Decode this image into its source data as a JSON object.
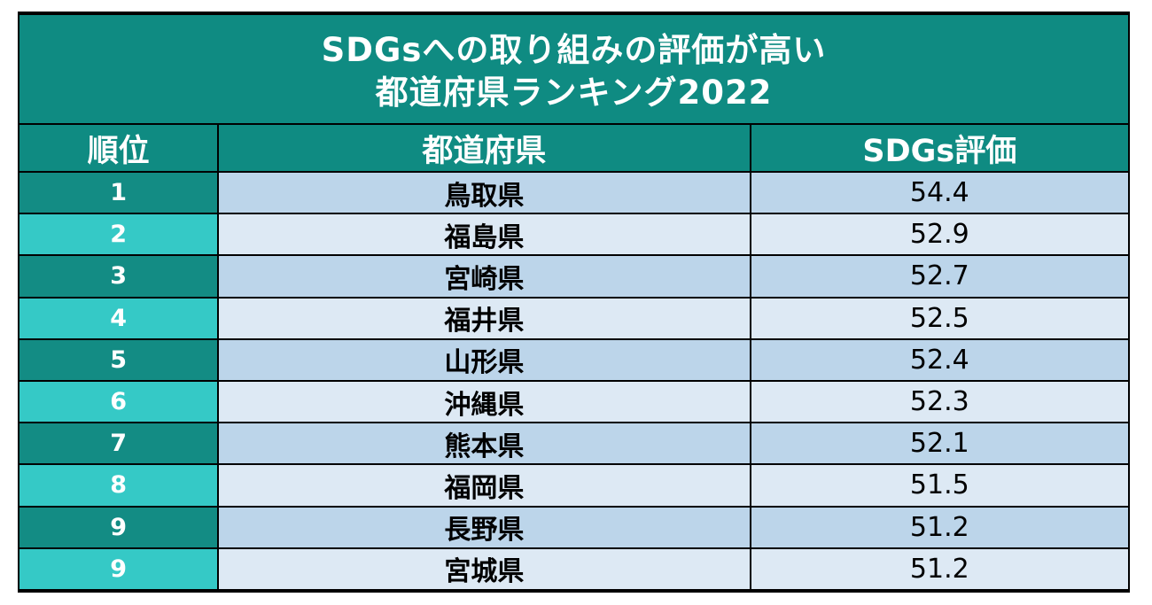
{
  "title": {
    "line1": "SDGsへの取り組みの評価が高い",
    "line2": "都道府県ランキング2022"
  },
  "headers": {
    "rank": "順位",
    "prefecture": "都道府県",
    "score": "SDGs評価"
  },
  "rows": [
    {
      "rank": "1",
      "prefecture": "鳥取県",
      "score": "54.4"
    },
    {
      "rank": "2",
      "prefecture": "福島県",
      "score": "52.9"
    },
    {
      "rank": "3",
      "prefecture": "宮崎県",
      "score": "52.7"
    },
    {
      "rank": "4",
      "prefecture": "福井県",
      "score": "52.5"
    },
    {
      "rank": "5",
      "prefecture": "山形県",
      "score": "52.4"
    },
    {
      "rank": "6",
      "prefecture": "沖縄県",
      "score": "52.3"
    },
    {
      "rank": "7",
      "prefecture": "熊本県",
      "score": "52.1"
    },
    {
      "rank": "8",
      "prefecture": "福岡県",
      "score": "51.5"
    },
    {
      "rank": "9",
      "prefecture": "長野県",
      "score": "51.2"
    },
    {
      "rank": "9",
      "prefecture": "宮城県",
      "score": "51.2"
    }
  ],
  "colors": {
    "header_teal": "#0f8b82",
    "rank_dark": "#138c84",
    "rank_light": "#35c9c6",
    "row_dark": "#bcd5ea",
    "row_light": "#dde9f4"
  }
}
